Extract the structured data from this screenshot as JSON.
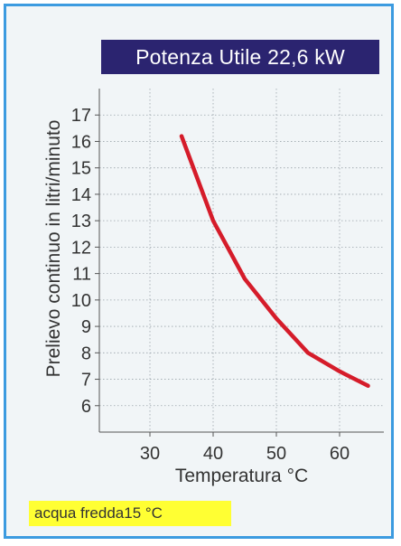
{
  "chart_data": {
    "type": "line",
    "title": "Potenza Utile 22,6 kW",
    "xlabel": "Temperatura °C",
    "ylabel": "Prelievo continuo in litri/minuto",
    "xlim": [
      22,
      67
    ],
    "ylim": [
      5,
      18
    ],
    "x_ticks": [
      30,
      40,
      50,
      60
    ],
    "y_ticks": [
      6,
      7,
      8,
      9,
      10,
      11,
      12,
      13,
      14,
      15,
      16,
      17
    ],
    "grid": true,
    "series": [
      {
        "x": [
          35,
          40,
          45,
          50,
          55,
          60,
          64.5
        ],
        "y": [
          16.2,
          13.0,
          10.8,
          9.3,
          8.0,
          7.3,
          6.75
        ],
        "color": "#d51c2a"
      }
    ],
    "note": "acqua fredda15 °C"
  }
}
